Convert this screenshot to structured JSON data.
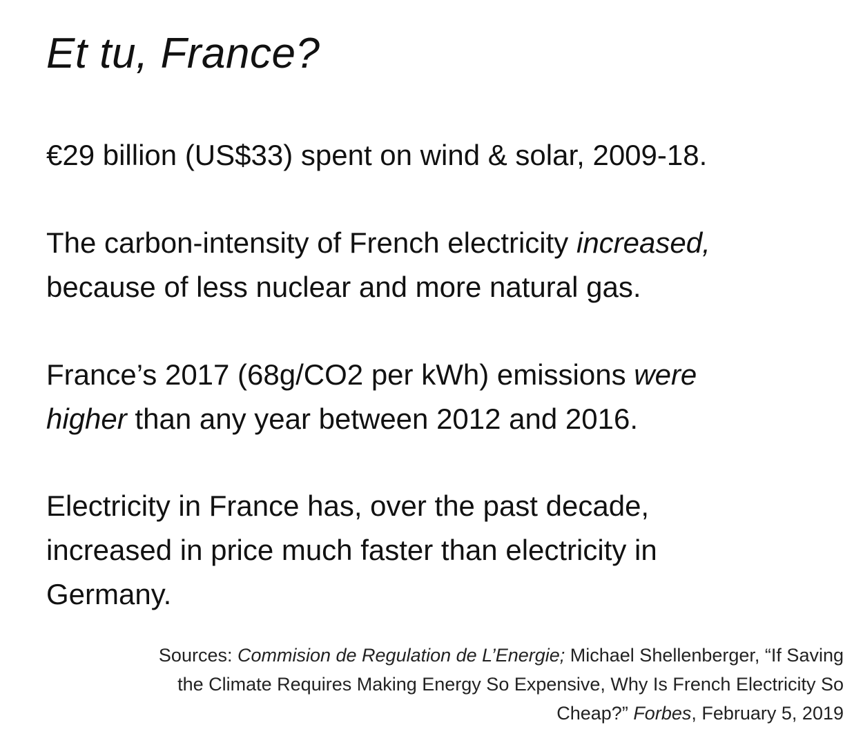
{
  "title": "Et tu, France?",
  "points": [
    {
      "lines": [
        [
          "€29 billion (US$33) spent on wind & solar, 2009-18."
        ]
      ]
    },
    {
      "line1_text": "The carbon-intensity of French electricity ",
      "line1_emph": "increased,",
      "line2_text": "because of less nuclear and more natural gas."
    },
    {
      "line1_text": "France’s 2017 (68g/CO2 per kWh) emissions ",
      "line1_emph": "were",
      "line2_emph": "higher",
      "line2_text": " than any year between 2012 and 2016."
    },
    {
      "line1_text": "Electricity in France has, over the past decade,",
      "line2_text": "increased in price much faster than electricity in",
      "line3_text": "Germany."
    }
  ],
  "sources": {
    "prefix": "Sources: ",
    "source1": "Commision de Regulation de L’Energie;",
    "author": " Michael  Shellenberger, “If Saving",
    "line2": "the Climate Requires Making Energy So Expensive, Why Is French Electricity So",
    "line3_text": "Cheap?” ",
    "publication": "Forbes",
    "date": ", February 5, 2019"
  }
}
